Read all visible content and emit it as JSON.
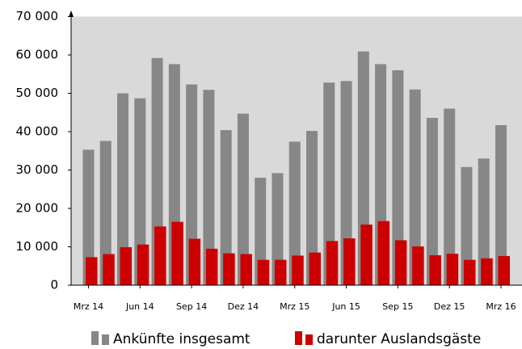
{
  "chart_data": {
    "type": "bar",
    "categories": [
      "Mrz 14",
      null,
      null,
      "Jun 14",
      null,
      null,
      "Sep 14",
      null,
      null,
      "Dez 14",
      null,
      null,
      "Mrz 15",
      null,
      null,
      "Jun 15",
      null,
      null,
      "Sep 15",
      null,
      null,
      "Dez 15",
      null,
      null,
      "Mrz 16"
    ],
    "series": [
      {
        "name": "Ankünfte insgesamt",
        "color": "#878787",
        "values": [
          35300,
          37600,
          50000,
          48700,
          59200,
          57600,
          52300,
          50900,
          40400,
          44700,
          28000,
          29200,
          37400,
          40200,
          52800,
          53200,
          60900,
          57600,
          56000,
          51000,
          43600,
          46000,
          30800,
          33000,
          41700
        ]
      },
      {
        "name": "darunter Auslandsgäste",
        "color": "#cc0000",
        "values": [
          7300,
          8100,
          9900,
          10600,
          15300,
          16500,
          12100,
          9500,
          8300,
          8100,
          6600,
          6600,
          7700,
          8500,
          11500,
          12200,
          15800,
          16700,
          11700,
          10100,
          7800,
          8200,
          6600,
          7000,
          7600
        ]
      }
    ],
    "ylim": [
      0,
      70000
    ],
    "yticks": [
      {
        "value": 0,
        "label": "0"
      },
      {
        "value": 10000,
        "label": "10 000"
      },
      {
        "value": 20000,
        "label": "20 000"
      },
      {
        "value": 30000,
        "label": "30 000"
      },
      {
        "value": 40000,
        "label": "40 000"
      },
      {
        "value": 50000,
        "label": "50 000"
      },
      {
        "value": 60000,
        "label": "60 000"
      },
      {
        "value": 70000,
        "label": "70 000"
      }
    ],
    "background": "#d9d9d9",
    "legend": "bottom"
  }
}
